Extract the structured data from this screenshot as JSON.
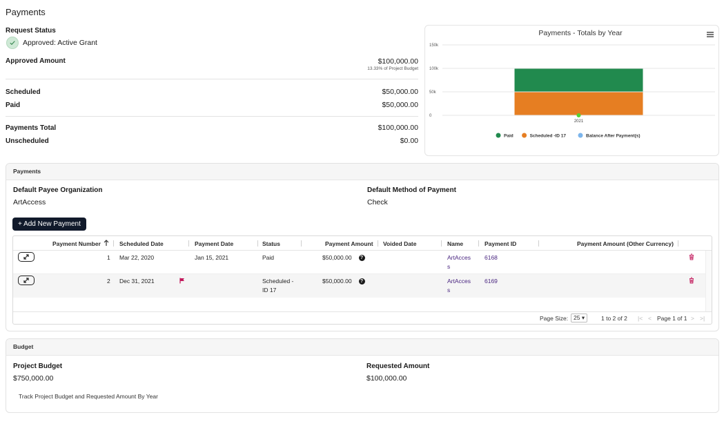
{
  "page": {
    "title": "Payments"
  },
  "summary": {
    "request_status_label": "Request Status",
    "request_status_value": "Approved: Active Grant",
    "approved_amount_label": "Approved Amount",
    "approved_amount_value": "$100,000.00",
    "approved_amount_note": "13.33% of Project Budget",
    "scheduled_label": "Scheduled",
    "scheduled_value": "$50,000.00",
    "paid_label": "Paid",
    "paid_value": "$50,000.00",
    "payments_total_label": "Payments Total",
    "payments_total_value": "$100,000.00",
    "unscheduled_label": "Unscheduled",
    "unscheduled_value": "$0.00"
  },
  "chart": {
    "menu_icon": "hamburger-menu-icon",
    "chart_data": {
      "type": "bar",
      "stacked": true,
      "title": "Payments - Totals by Year",
      "categories": [
        "2021"
      ],
      "series": [
        {
          "name": "Paid",
          "values": [
            50000
          ],
          "color": "#218a4e"
        },
        {
          "name": "Scheduled -ID 17",
          "values": [
            50000
          ],
          "color": "#e67e22"
        },
        {
          "name": "Balance After Payment(s)",
          "values": [
            0
          ],
          "color": "#7cb5ec",
          "marker": "point",
          "marker_color": "#53d233"
        }
      ],
      "y_ticks": [
        "0",
        "50k",
        "100k",
        "150k"
      ],
      "ylim": [
        0,
        150000
      ],
      "grid": true,
      "legend_position": "bottom"
    }
  },
  "payments_panel": {
    "header": "Payments",
    "default_payee_label": "Default Payee Organization",
    "default_payee_value": "ArtAccess",
    "default_method_label": "Default Method of Payment",
    "default_method_value": "Check",
    "add_button_label": "+ Add New Payment",
    "columns": [
      "Payment Number",
      "Scheduled Date",
      "Payment Date",
      "Status",
      "Payment Amount",
      "Voided Date",
      "Name",
      "Payment ID",
      "Payment Amount (Other Currency)"
    ],
    "sort_icon": "arrow-up-icon",
    "rows": [
      {
        "number": "1",
        "scheduled_date": "Mar 22, 2020",
        "payment_date": "Jan 15, 2021",
        "status_line1": "Paid",
        "status_line2": "",
        "amount": "$50,000.00",
        "name_line1": "ArtAcces",
        "name_line2": "s",
        "payment_id": "6168",
        "flag": false
      },
      {
        "number": "2",
        "scheduled_date": "Dec 31, 2021",
        "payment_date": "",
        "status_line1": "Scheduled -",
        "status_line2": "ID 17",
        "amount": "$50,000.00",
        "name_line1": "ArtAcces",
        "name_line2": "s",
        "payment_id": "6169",
        "flag": true
      }
    ],
    "pager": {
      "page_size_label": "Page Size:",
      "page_size_value": "25",
      "range": "1 to 2 of 2",
      "page_info": "Page 1 of 1"
    }
  },
  "budget_panel": {
    "header": "Budget",
    "project_budget_label": "Project Budget",
    "project_budget_value": "$750,000.00",
    "requested_amount_label": "Requested Amount",
    "requested_amount_value": "$100,000.00",
    "track_link": "Track Project Budget and Requested Amount By Year"
  }
}
